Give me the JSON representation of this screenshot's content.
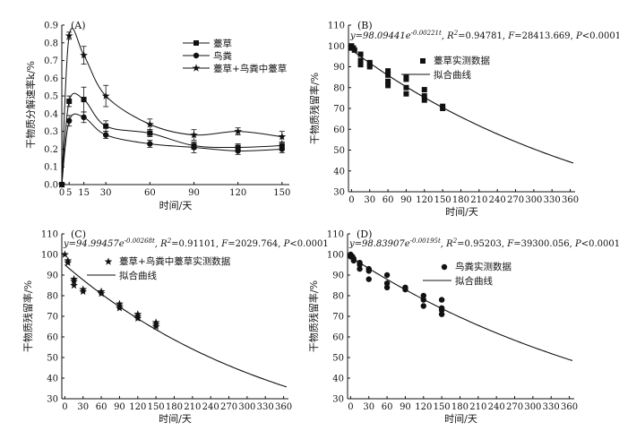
{
  "chart_data": [
    {
      "panel": "(A)",
      "type": "line",
      "xlabel": "时间/天",
      "ylabel": "干物质分解速率k/%",
      "xticks": [
        0,
        5,
        15,
        30,
        60,
        90,
        120,
        150
      ],
      "xlim": [
        0,
        155
      ],
      "yticks": [
        "0.0",
        "0.1",
        "0.2",
        "0.3",
        "0.4",
        "0.5",
        "0.6",
        "0.7",
        "0.8",
        "0.9"
      ],
      "ylim": [
        0,
        0.9
      ],
      "legend_position": "top-right",
      "series": [
        {
          "name": "薹草",
          "marker": "square",
          "x": [
            0,
            5,
            15,
            30,
            60,
            90,
            120,
            150
          ],
          "y": [
            0,
            0.47,
            0.48,
            0.33,
            0.29,
            0.22,
            0.21,
            0.22
          ],
          "err": [
            0,
            0.03,
            0.07,
            0.03,
            0.02,
            0.02,
            0.02,
            0.02
          ]
        },
        {
          "name": "鸟粪",
          "marker": "circle",
          "x": [
            0,
            5,
            15,
            30,
            60,
            90,
            120,
            150
          ],
          "y": [
            0,
            0.36,
            0.38,
            0.28,
            0.23,
            0.21,
            0.19,
            0.2
          ],
          "err": [
            0,
            0.03,
            0.03,
            0.02,
            0.02,
            0.03,
            0.02,
            0.02
          ]
        },
        {
          "name": "薹草+鸟粪中薹草",
          "marker": "star",
          "x": [
            0,
            5,
            15,
            30,
            60,
            90,
            120,
            150
          ],
          "y": [
            0,
            0.84,
            0.73,
            0.5,
            0.34,
            0.28,
            0.3,
            0.27
          ],
          "err": [
            0,
            0.02,
            0.05,
            0.06,
            0.03,
            0.03,
            0.02,
            0.03
          ]
        }
      ]
    },
    {
      "panel": "(B)",
      "type": "scatter",
      "xlabel": "时间/天",
      "ylabel": "干物质残留率/%",
      "equation": "y=98.09441e-0.00221t, R²=0.94781, F=28413.669, P<0.0001",
      "xticks": [
        0,
        30,
        60,
        90,
        120,
        150,
        180,
        210,
        240,
        270,
        300,
        330,
        360
      ],
      "xlim": [
        -5,
        368
      ],
      "yticks": [
        30,
        40,
        50,
        60,
        70,
        80,
        90,
        100,
        110
      ],
      "ylim": [
        30,
        110
      ],
      "legend_position": "top-right",
      "points_name": "薹草实测数据",
      "marker": "square",
      "points": [
        [
          0,
          100
        ],
        [
          0,
          99
        ],
        [
          3,
          99
        ],
        [
          5,
          98
        ],
        [
          15,
          96
        ],
        [
          15,
          93
        ],
        [
          15,
          91
        ],
        [
          30,
          92
        ],
        [
          30,
          91
        ],
        [
          30,
          90
        ],
        [
          60,
          88
        ],
        [
          60,
          86
        ],
        [
          60,
          83
        ],
        [
          60,
          81
        ],
        [
          90,
          85
        ],
        [
          90,
          84
        ],
        [
          90,
          80
        ],
        [
          90,
          77
        ],
        [
          120,
          79
        ],
        [
          120,
          76
        ],
        [
          120,
          74
        ],
        [
          150,
          71
        ],
        [
          150,
          70
        ]
      ],
      "curve_name": "拟合曲线",
      "fit": {
        "a": 98.09441,
        "b": 0.00221
      }
    },
    {
      "panel": "(C)",
      "type": "scatter",
      "xlabel": "时间/天",
      "ylabel": "干物质残留率/%",
      "equation": "y=94.99457e-0.00268t, R²=0.91101, F=2029.764, P<0.0001",
      "xticks": [
        0,
        30,
        60,
        90,
        120,
        150,
        180,
        210,
        240,
        270,
        300,
        330,
        360
      ],
      "xlim": [
        -5,
        368
      ],
      "yticks": [
        30,
        40,
        50,
        60,
        70,
        80,
        90,
        100,
        110
      ],
      "ylim": [
        30,
        110
      ],
      "legend_position": "top-right",
      "points_name": "薹草+鸟粪中薹草实测数据",
      "marker": "star",
      "points": [
        [
          0,
          100
        ],
        [
          5,
          97
        ],
        [
          5,
          96
        ],
        [
          15,
          88
        ],
        [
          15,
          87
        ],
        [
          15,
          85
        ],
        [
          30,
          83
        ],
        [
          30,
          82
        ],
        [
          60,
          82
        ],
        [
          60,
          81
        ],
        [
          90,
          76
        ],
        [
          90,
          75
        ],
        [
          90,
          74
        ],
        [
          120,
          71
        ],
        [
          120,
          70
        ],
        [
          120,
          69
        ],
        [
          150,
          67
        ],
        [
          150,
          66
        ],
        [
          150,
          65
        ]
      ],
      "curve_name": "拟合曲线",
      "fit": {
        "a": 94.99457,
        "b": 0.00268
      }
    },
    {
      "panel": "(D)",
      "type": "scatter",
      "xlabel": "时间/天",
      "ylabel": "干物质残留率/%",
      "equation": "y=98.83907e-0.00195t, R²=0.95203, F=39300.056, P<0.0001",
      "xticks": [
        0,
        30,
        60,
        90,
        120,
        150,
        180,
        210,
        240,
        270,
        300,
        330,
        360
      ],
      "xlim": [
        -5,
        368
      ],
      "yticks": [
        30,
        40,
        50,
        60,
        70,
        80,
        90,
        100,
        110
      ],
      "ylim": [
        30,
        110
      ],
      "legend_position": "top-right",
      "points_name": "鸟粪实测数据",
      "marker": "circle",
      "points": [
        [
          0,
          100
        ],
        [
          0,
          99
        ],
        [
          3,
          99
        ],
        [
          5,
          98
        ],
        [
          5,
          97
        ],
        [
          15,
          96
        ],
        [
          15,
          95
        ],
        [
          15,
          93
        ],
        [
          30,
          93
        ],
        [
          30,
          92
        ],
        [
          30,
          88
        ],
        [
          60,
          90
        ],
        [
          60,
          86
        ],
        [
          60,
          84
        ],
        [
          90,
          84
        ],
        [
          90,
          83
        ],
        [
          120,
          80
        ],
        [
          120,
          78
        ],
        [
          120,
          75
        ],
        [
          150,
          78
        ],
        [
          150,
          74
        ],
        [
          150,
          73
        ],
        [
          150,
          71
        ]
      ],
      "curve_name": "拟合曲线",
      "fit": {
        "a": 98.83907,
        "b": 0.00195
      }
    }
  ],
  "eq_parts": {
    "B": {
      "a": "y=98.09441e",
      "b": "-0.00221t",
      "c": ", R",
      "d": "2",
      "e": "=0.94781, ",
      "f": "F",
      "g": "=28413.669, ",
      "h": "P",
      "i": "<0.0001"
    },
    "C": {
      "a": "y=94.99457e",
      "b": "-0.00268t",
      "c": ", R",
      "d": "2",
      "e": "=0.91101, ",
      "f": "F",
      "g": "=2029.764, ",
      "h": "P",
      "i": "<0.0001"
    },
    "D": {
      "a": "y=98.83907e",
      "b": "-0.00195t",
      "c": ", R",
      "d": "2",
      "e": "=0.95203, ",
      "f": "F",
      "g": "=39300.056, ",
      "h": "P",
      "i": "<0.0001"
    }
  }
}
